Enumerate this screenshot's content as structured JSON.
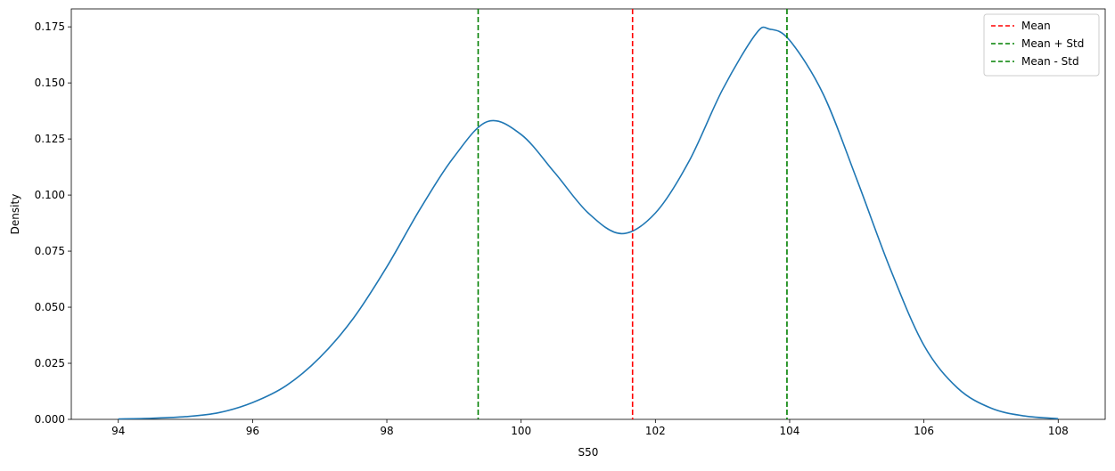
{
  "chart_data": {
    "type": "line",
    "subtype": "kde",
    "title": "",
    "xlabel": "S50",
    "ylabel": "Density",
    "xlim": [
      93.3,
      108.7
    ],
    "ylim": [
      0,
      0.183
    ],
    "x_ticks": [
      94,
      96,
      98,
      100,
      102,
      104,
      106,
      108
    ],
    "x_tick_labels": [
      "94",
      "96",
      "98",
      "100",
      "102",
      "104",
      "106",
      "108"
    ],
    "y_ticks": [
      0.0,
      0.025,
      0.05,
      0.075,
      0.1,
      0.125,
      0.15,
      0.175
    ],
    "y_tick_labels": [
      "0.000",
      "0.025",
      "0.050",
      "0.075",
      "0.100",
      "0.125",
      "0.150",
      "0.175"
    ],
    "grid": false,
    "legend_position": "top-right",
    "series": [
      {
        "name": "",
        "color": "#1f77b4",
        "points": [
          [
            94.0,
            0.0002
          ],
          [
            94.5,
            0.0005
          ],
          [
            95.0,
            0.0012
          ],
          [
            95.5,
            0.003
          ],
          [
            96.0,
            0.0075
          ],
          [
            96.5,
            0.015
          ],
          [
            97.0,
            0.0275
          ],
          [
            97.5,
            0.045
          ],
          [
            98.0,
            0.068
          ],
          [
            98.5,
            0.094
          ],
          [
            99.0,
            0.117
          ],
          [
            99.5,
            0.1328
          ],
          [
            100.0,
            0.127
          ],
          [
            100.5,
            0.11
          ],
          [
            101.0,
            0.092
          ],
          [
            101.5,
            0.0828
          ],
          [
            102.0,
            0.092
          ],
          [
            102.5,
            0.115
          ],
          [
            103.0,
            0.147
          ],
          [
            103.5,
            0.172
          ],
          [
            103.7,
            0.174
          ],
          [
            104.0,
            0.169
          ],
          [
            104.5,
            0.145
          ],
          [
            105.0,
            0.107
          ],
          [
            105.5,
            0.067
          ],
          [
            106.0,
            0.033
          ],
          [
            106.5,
            0.014
          ],
          [
            107.0,
            0.005
          ],
          [
            107.5,
            0.0015
          ],
          [
            108.0,
            0.0003
          ]
        ]
      }
    ],
    "vlines": [
      {
        "label": "Mean",
        "x": 101.66,
        "color": "#d62728",
        "style": "dashed"
      },
      {
        "label": "Mean + Std",
        "x": 103.96,
        "color": "#2ca02c",
        "style": "dashed"
      },
      {
        "label": "Mean - Std",
        "x": 99.36,
        "color": "#2ca02c",
        "style": "dashed"
      }
    ],
    "colors": {
      "mean": "#ff0000",
      "std": "#008000",
      "curve": "#1f77b4"
    }
  }
}
